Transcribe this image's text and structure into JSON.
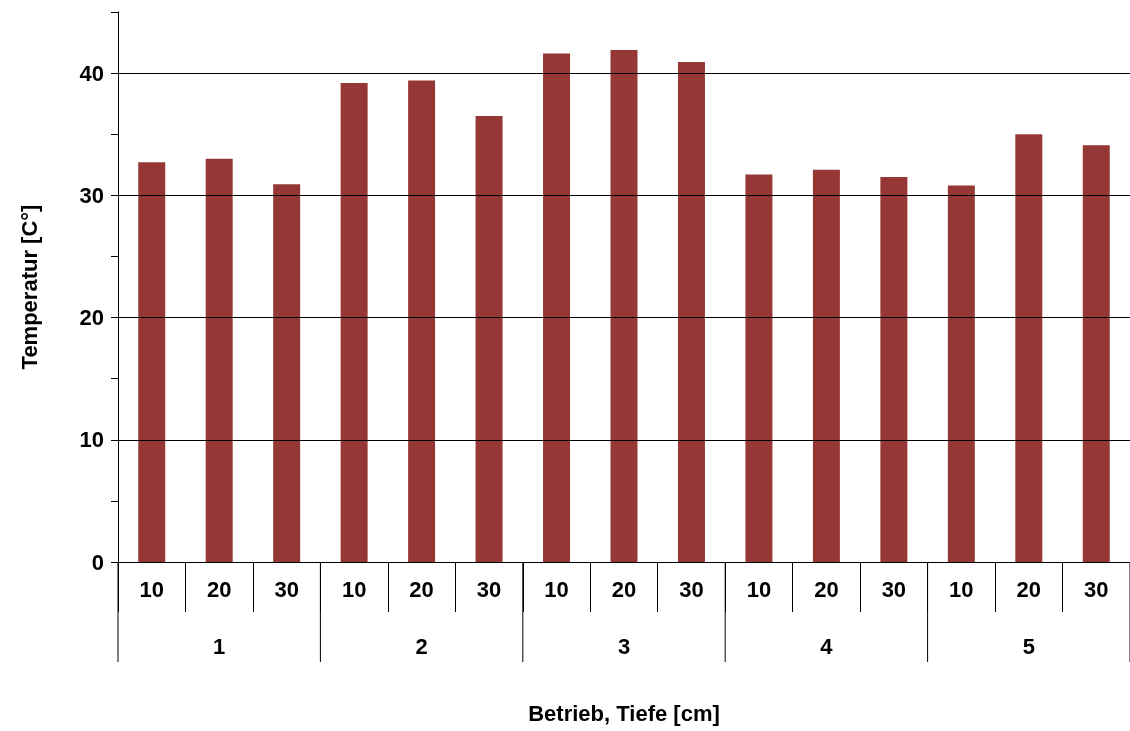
{
  "chart_data": {
    "type": "bar",
    "xlabel": "Betrieb, Tiefe [cm]",
    "ylabel": "Temperatur [C°]",
    "categories": [
      "10",
      "20",
      "30",
      "10",
      "20",
      "30",
      "10",
      "20",
      "30",
      "10",
      "20",
      "30",
      "10",
      "20",
      "30"
    ],
    "values": [
      32.7,
      33.0,
      30.9,
      39.2,
      39.4,
      36.5,
      41.6,
      41.9,
      40.9,
      31.7,
      32.1,
      31.5,
      30.8,
      35.0,
      34.1
    ],
    "color": "#953735",
    "annotations": [
      "1",
      "2",
      "3",
      "4",
      "5"
    ],
    "ylim": [
      0,
      45
    ],
    "yticks": [
      0,
      {
        "value": 5,
        "label": null
      },
      10,
      {
        "value": 15,
        "label": null
      },
      20,
      {
        "value": 25,
        "label": null
      },
      30,
      {
        "value": 35,
        "label": null
      },
      40,
      {
        "value": 45,
        "label": null
      }
    ],
    "grid": "y"
  }
}
